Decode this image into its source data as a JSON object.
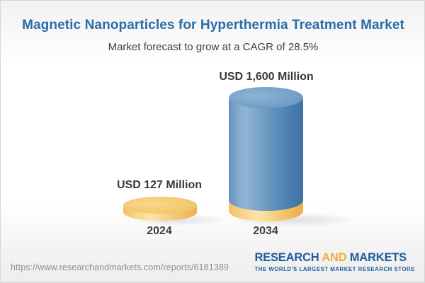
{
  "header": {
    "title": "Magnetic Nanoparticles for Hyperthermia Treatment Market",
    "subtitle": "Market forecast to grow at a CAGR of 28.5%"
  },
  "chart_data": {
    "type": "bar",
    "title": "Magnetic Nanoparticles for Hyperthermia Treatment Market",
    "subtitle": "Market forecast to grow at a CAGR of 28.5%",
    "categories": [
      "2024",
      "2034"
    ],
    "values": [
      127,
      1600
    ],
    "value_labels": [
      "USD 127 Million",
      "USD 1,600 Million"
    ],
    "unit": "USD Million",
    "cagr_pct": 28.5,
    "legend": "none",
    "grid": false,
    "bar_style": "3d-cylinder",
    "bar_colors": [
      "#f5c96d",
      "#6592bf"
    ]
  },
  "colors": {
    "title_blue": "#2a6ca9",
    "text_dark": "#3f3f3f",
    "bar_gold": "#f5c96d",
    "bar_blue": "#6592bf",
    "logo_blue": "#1e5c9b",
    "logo_gold": "#f0ad3b",
    "url_gray": "#8f8f8f"
  },
  "footer": {
    "url": "https://www.researchandmarkets.com/reports/6181389",
    "logo": {
      "word1": "RESEARCH",
      "word2": "AND",
      "word3": "MARKETS",
      "tagline": "THE WORLD'S LARGEST MARKET RESEARCH STORE"
    }
  }
}
